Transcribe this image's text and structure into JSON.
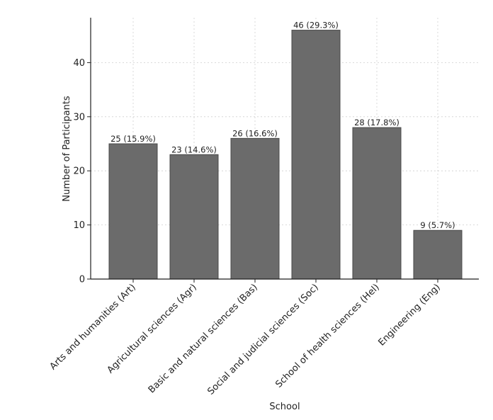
{
  "chart_data": {
    "type": "bar",
    "categories": [
      "Arts and humanities (Art)",
      "Agricultural sciences (Agr)",
      "Basic and natural sciences (Bas)",
      "Social and judicial sciences (Soc)",
      "School of health sciences (Hel)",
      "Engineering (Eng)"
    ],
    "values": [
      25,
      23,
      26,
      46,
      28,
      9
    ],
    "data_labels": [
      "25 (15.9%)",
      "23 (14.6%)",
      "26 (16.6%)",
      "46 (29.3%)",
      "28 (17.8%)",
      "9 (5.7%)"
    ],
    "xlabel": "School",
    "ylabel": "Number of Participants",
    "ylim": [
      0,
      48.3
    ],
    "yticks": [
      0,
      10,
      20,
      30,
      40
    ],
    "grid": true,
    "bar_color": "#6b6b6b",
    "bar_edge_color": "#4a4a4a"
  }
}
